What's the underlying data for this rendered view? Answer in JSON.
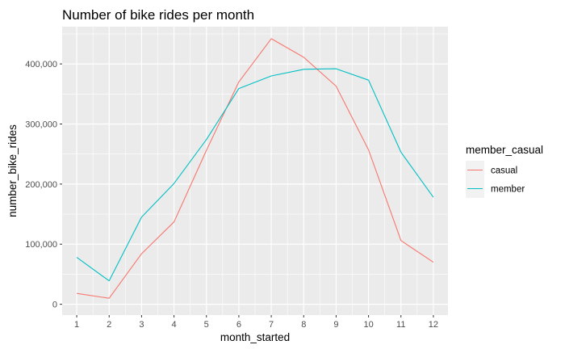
{
  "chart_data": {
    "type": "line",
    "title": "Number of bike rides per month",
    "xlabel": "month_started",
    "ylabel": "number_bike_rides",
    "x": [
      1,
      2,
      3,
      4,
      5,
      6,
      7,
      8,
      9,
      10,
      11,
      12
    ],
    "xlim": [
      0.55,
      12.45
    ],
    "ylim": [
      -18000,
      462000
    ],
    "yticks": [
      0,
      100000,
      200000,
      300000,
      400000
    ],
    "ytick_labels": [
      "0",
      "100,000",
      "200,000",
      "300,000",
      "400,000"
    ],
    "grid": true,
    "legend_title": "member_casual",
    "legend_position": "right",
    "series": [
      {
        "name": "casual",
        "color": "#F8766D",
        "values": [
          18000,
          10000,
          84000,
          137000,
          256000,
          370000,
          442000,
          411000,
          363000,
          257000,
          106000,
          70000
        ]
      },
      {
        "name": "member",
        "color": "#00BFC4",
        "values": [
          78000,
          39000,
          145000,
          201000,
          274000,
          359000,
          380000,
          391000,
          392000,
          373000,
          253000,
          178000
        ]
      }
    ]
  }
}
